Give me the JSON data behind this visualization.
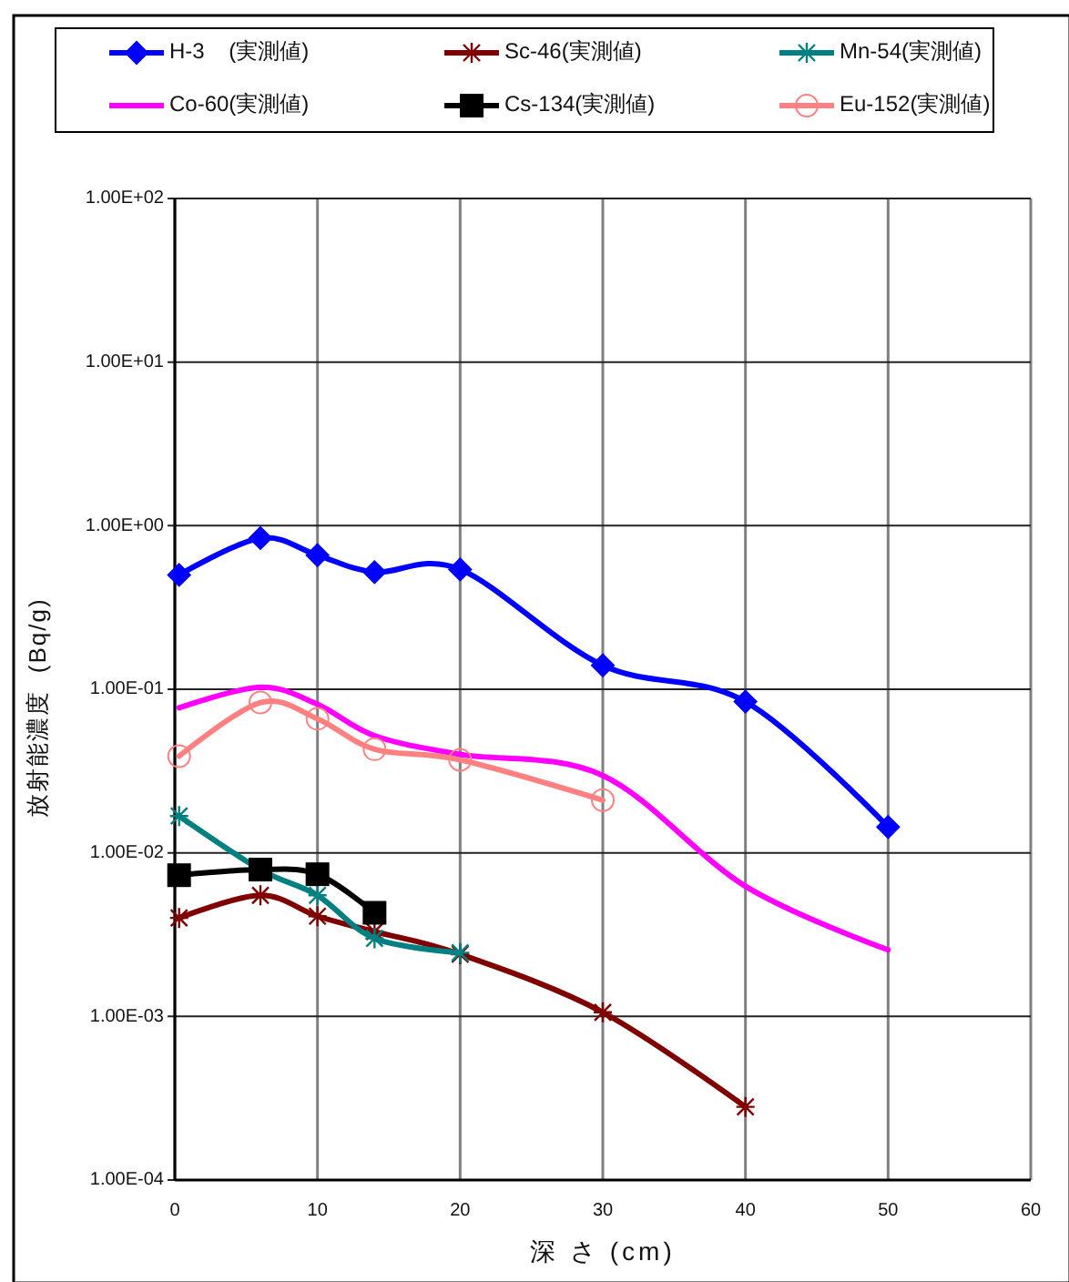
{
  "chart_data": {
    "type": "line",
    "xlabel": "深 さ (cm)",
    "ylabel": "放射能濃度  (Bq/g)",
    "xlim": [
      0,
      60
    ],
    "xticks": [
      0,
      10,
      20,
      30,
      40,
      50,
      60
    ],
    "ylim": [
      0.0001,
      100
    ],
    "yticks": [
      {
        "value": 0.0001,
        "label": "1.00E-04"
      },
      {
        "value": 0.001,
        "label": "1.00E-03"
      },
      {
        "value": 0.01,
        "label": "1.00E-02"
      },
      {
        "value": 0.1,
        "label": "1.00E-01"
      },
      {
        "value": 1,
        "label": "1.00E+00"
      },
      {
        "value": 10,
        "label": "1.00E+01"
      },
      {
        "value": 100,
        "label": "1.00E+02"
      }
    ],
    "log": "y",
    "grid": true,
    "legend": "top",
    "line_style": "solid",
    "series": [
      {
        "name": "H-3    (実測値)",
        "color": "#0000ff",
        "marker": "diamond",
        "x": [
          0.3,
          6,
          10,
          14,
          20,
          30,
          40,
          50
        ],
        "values": [
          0.5,
          0.84,
          0.66,
          0.52,
          0.54,
          0.14,
          0.084,
          0.0144
        ]
      },
      {
        "name": "Sc-46(実測値)",
        "color": "#800000",
        "marker": "cross",
        "x": [
          0.3,
          6,
          10,
          14,
          20,
          30,
          40
        ],
        "values": [
          0.004,
          0.0055,
          0.0041,
          0.0033,
          0.0024,
          0.00106,
          0.00028
        ]
      },
      {
        "name": "Mn-54(実測値)",
        "color": "#008080",
        "marker": "cross",
        "x": [
          0.3,
          6,
          10,
          14,
          20
        ],
        "values": [
          0.0168,
          0.0079,
          0.0055,
          0.003,
          0.00245
        ]
      },
      {
        "name": "Co-60(実測値)",
        "color": "#ff00ff",
        "marker": "none",
        "x": [
          0.3,
          6,
          10,
          14,
          20,
          30,
          40,
          50
        ],
        "values": [
          0.077,
          0.103,
          0.081,
          0.052,
          0.04,
          0.0297,
          0.00625,
          0.00255
        ]
      },
      {
        "name": "Cs-134(実測値)",
        "color": "#000000",
        "marker": "square",
        "x": [
          0.3,
          6,
          10,
          14
        ],
        "values": [
          0.0073,
          0.0079,
          0.0074,
          0.0043
        ]
      },
      {
        "name": "Eu-152(実測値)",
        "color": "#ff8080",
        "marker": "circle",
        "x": [
          0.3,
          6,
          10,
          14,
          20,
          30
        ],
        "values": [
          0.039,
          0.083,
          0.066,
          0.043,
          0.037,
          0.021
        ]
      }
    ]
  }
}
